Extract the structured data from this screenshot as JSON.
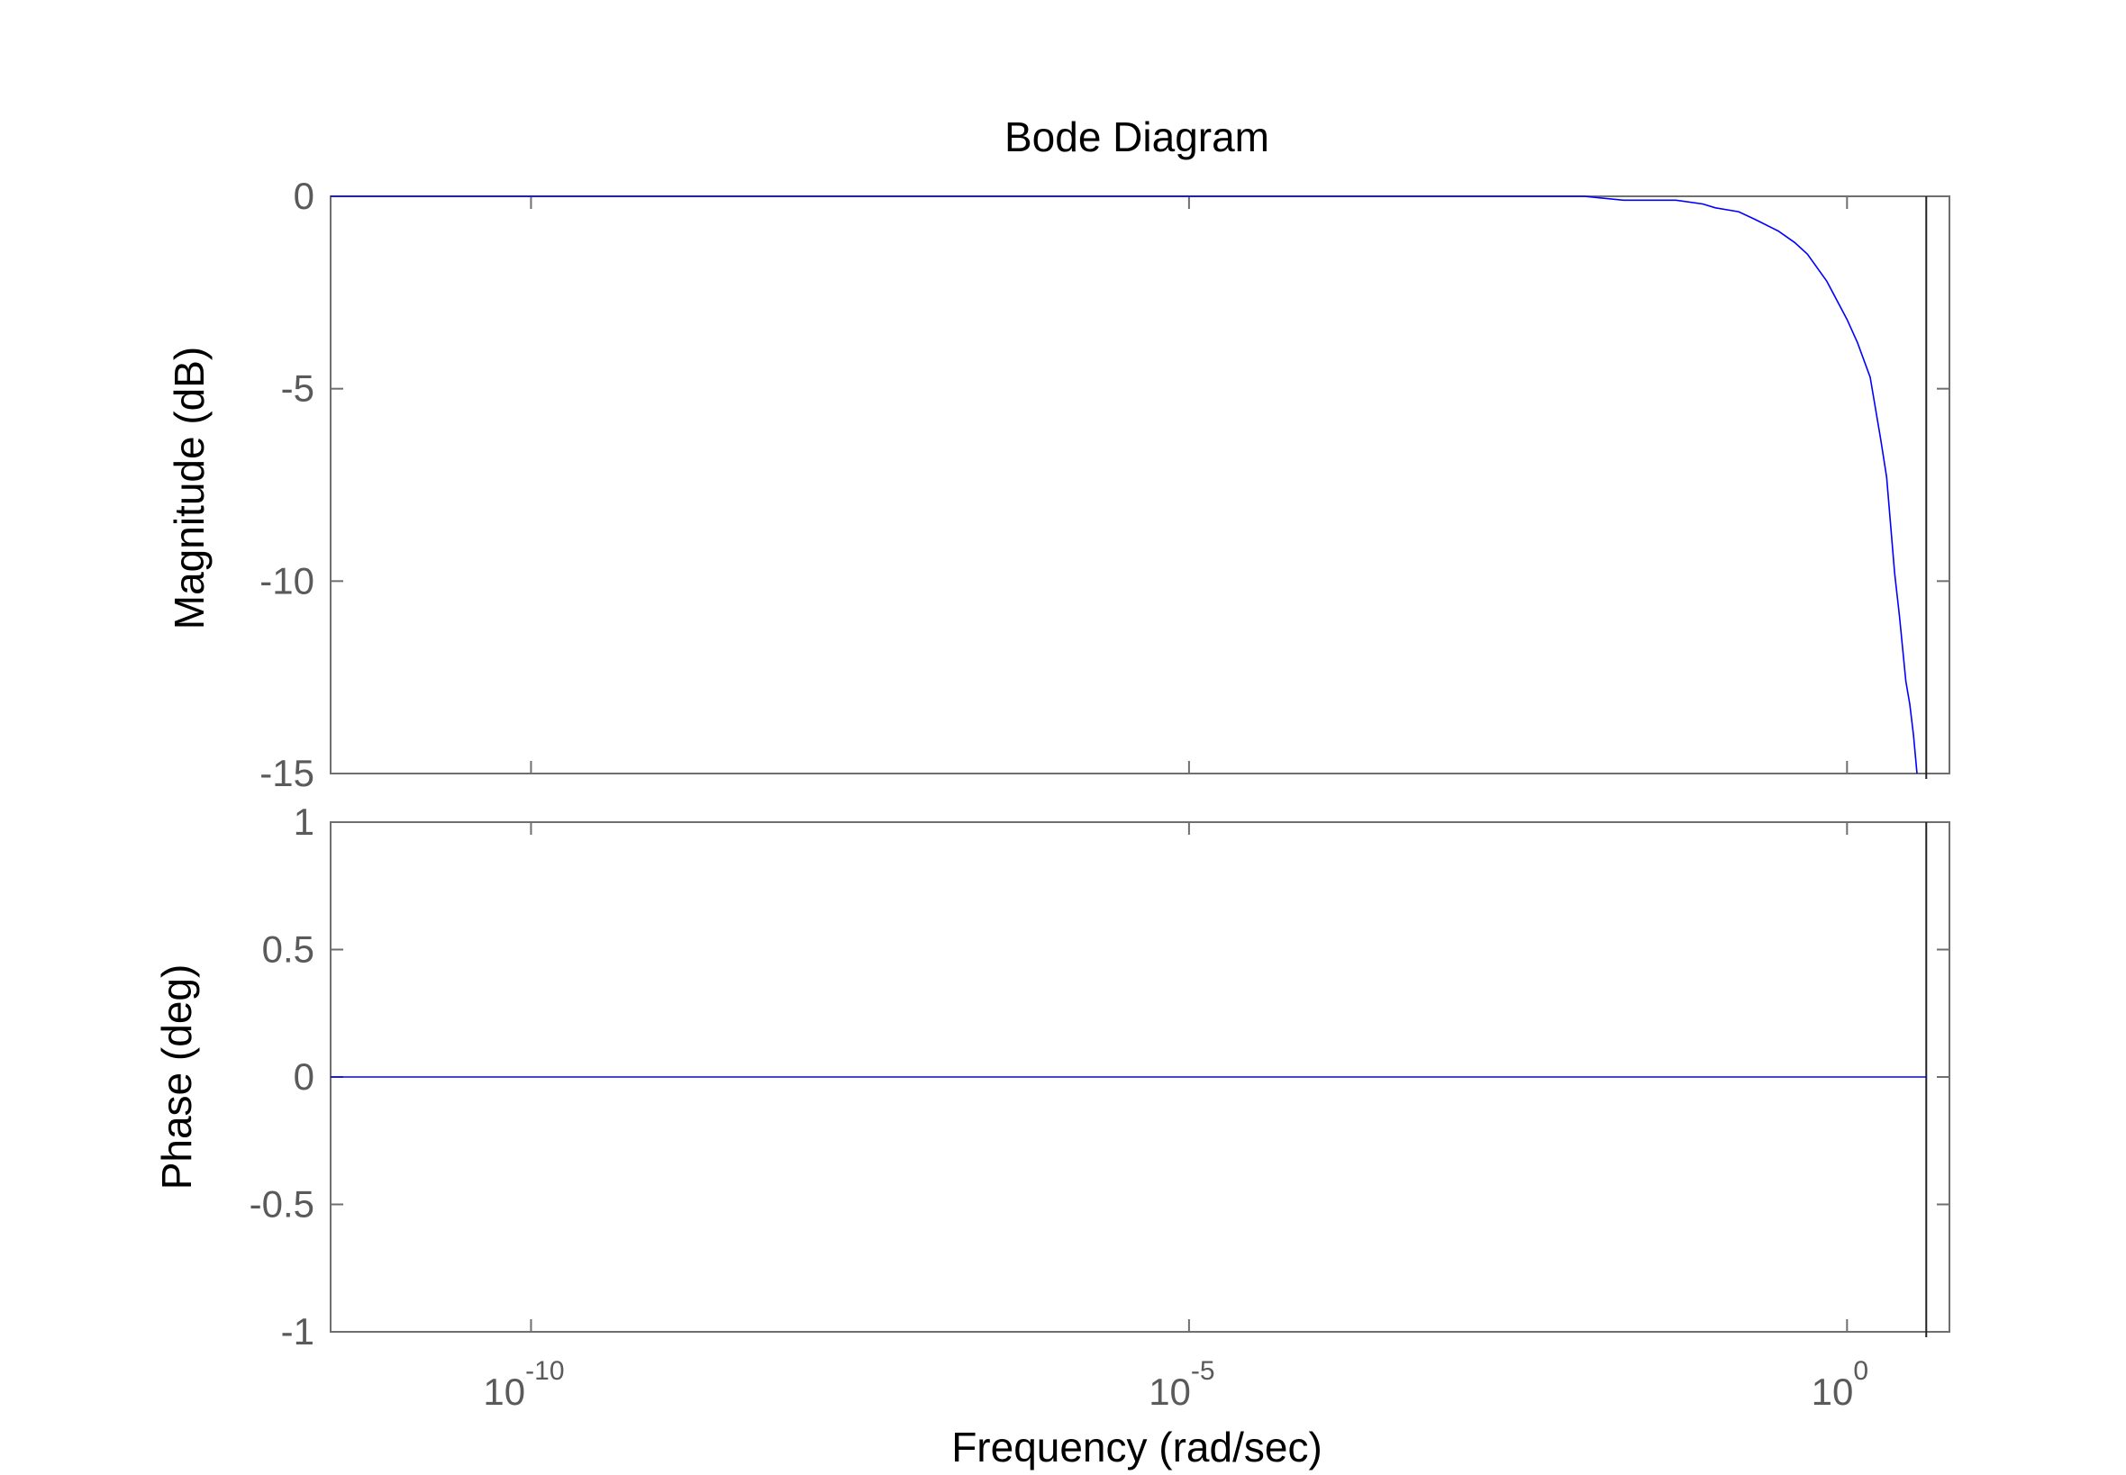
{
  "chart_data": [
    {
      "type": "line",
      "panel": "magnitude",
      "title": "Bode Diagram",
      "ylabel": "Magnitude (dB)",
      "xscale": "log",
      "xlim": [
        3e-12,
        6
      ],
      "ylim": [
        -15,
        0
      ],
      "yticks": [
        "0",
        "-5",
        "-10",
        "-15"
      ],
      "grid": false,
      "line_color": "#0000ff",
      "series": [
        {
          "x": [
            3e-12,
            0.01,
            0.02,
            0.03,
            0.05,
            0.08,
            0.1,
            0.15,
            0.2,
            0.3,
            0.4,
            0.5,
            0.7,
            1.0,
            1.2,
            1.5,
            1.8,
            2.0,
            2.3,
            2.5,
            2.8,
            3.0,
            3.2,
            3.4
          ],
          "y": [
            0,
            0,
            -0.1,
            -0.1,
            -0.1,
            -0.2,
            -0.3,
            -0.4,
            -0.6,
            -0.9,
            -1.2,
            -1.5,
            -2.2,
            -3.2,
            -3.8,
            -4.7,
            -6.3,
            -7.3,
            -9.8,
            -10.9,
            -12.6,
            -13.2,
            -14.0,
            -15.0
          ]
        }
      ],
      "marker_line_x": 4
    },
    {
      "type": "line",
      "panel": "phase",
      "ylabel": "Phase (deg)",
      "xlabel": "Frequency  (rad/sec)",
      "xscale": "log",
      "xlim": [
        3e-12,
        6
      ],
      "ylim": [
        -1,
        1
      ],
      "yticks": [
        "1",
        "0.5",
        "0",
        "-0.5",
        "-1"
      ],
      "xticks": [
        {
          "base": "10",
          "exp": "-10",
          "value": 1e-10
        },
        {
          "base": "10",
          "exp": "-5",
          "value": 1e-05
        },
        {
          "base": "10",
          "exp": "0",
          "value": 1
        }
      ],
      "grid": false,
      "line_color": "#0000ff",
      "series": [
        {
          "x": [
            3e-12,
            4
          ],
          "y": [
            0,
            0
          ]
        }
      ],
      "marker_line_x": 4
    }
  ]
}
